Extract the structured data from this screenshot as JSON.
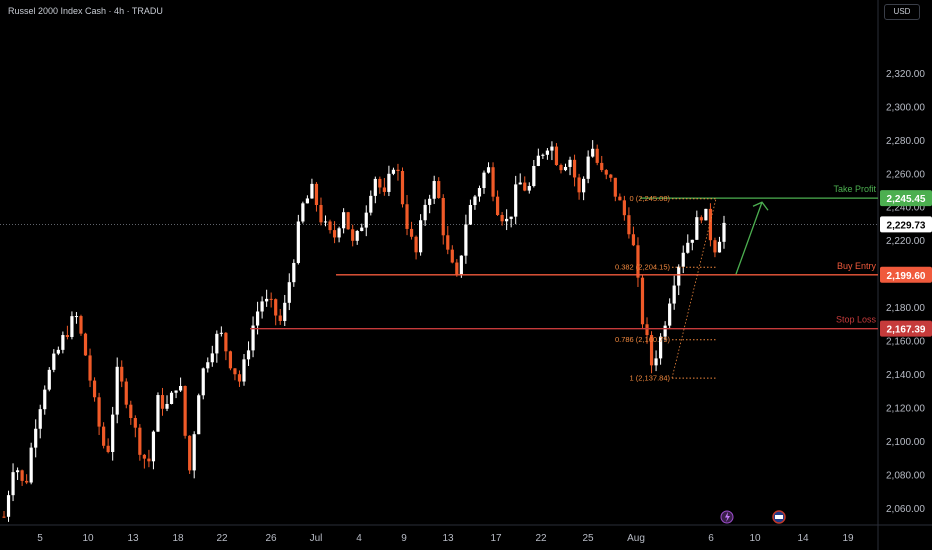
{
  "header": {
    "title": "Russel 2000 Index Cash · 4h · TRADU",
    "currency": "USD"
  },
  "colors": {
    "up": "#ffffff",
    "down": "#f05a28",
    "take_profit": "#4caf50",
    "buy_entry": "#f05a3c",
    "stop_loss": "#c63b3b",
    "fib": "#f0883e",
    "last_price_bg": "#ffffff"
  },
  "chart_data": {
    "type": "candlestick",
    "ylim": [
      2050,
      2340
    ],
    "y_ticks": [
      "2,060.00",
      "2,080.00",
      "2,100.00",
      "2,120.00",
      "2,140.00",
      "2,160.00",
      "2,180.00",
      "2,200.00",
      "2,220.00",
      "2,240.00",
      "2,260.00",
      "2,280.00",
      "2,300.00",
      "2,320.00"
    ],
    "x_ticks": [
      "5",
      "10",
      "13",
      "18",
      "22",
      "26",
      "Jul",
      "4",
      "9",
      "13",
      "17",
      "22",
      "25",
      "Aug",
      "6",
      "10",
      "14",
      "19"
    ],
    "last_price": "2,229.73",
    "levels": [
      {
        "name": "Take Profit",
        "value": 2245.45,
        "label": "2,245.45",
        "color": "#4caf50"
      },
      {
        "name": "Buy Entry",
        "value": 2199.6,
        "label": "2,199.60",
        "color": "#f05a3c"
      },
      {
        "name": "Stop Loss",
        "value": 2167.39,
        "label": "2,167.39",
        "color": "#c63b3b"
      }
    ],
    "fib_labels": [
      {
        "text": "0 (2,245.08)",
        "value": 2245.08
      },
      {
        "text": "0.382 (2,204.15)",
        "value": 2204.15
      },
      {
        "text": "0.786 (2,160.79)",
        "value": 2160.79
      },
      {
        "text": "1 (2,137.84)",
        "value": 2137.84
      }
    ],
    "path_points": [
      2055,
      2090,
      2070,
      2110,
      2135,
      2150,
      2165,
      2175,
      2150,
      2115,
      2090,
      2140,
      2125,
      2100,
      2085,
      2125,
      2120,
      2140,
      2080,
      2135,
      2155,
      2165,
      2148,
      2135,
      2165,
      2185,
      2180,
      2170,
      2205,
      2240,
      2250,
      2230,
      2220,
      2240,
      2215,
      2235,
      2260,
      2245,
      2270,
      2235,
      2210,
      2245,
      2255,
      2215,
      2195,
      2235,
      2250,
      2265,
      2240,
      2230,
      2255,
      2250,
      2270,
      2280,
      2265,
      2270,
      2245,
      2280,
      2260,
      2255,
      2240,
      2225,
      2175,
      2145,
      2165,
      2195,
      2215,
      2225,
      2240,
      2215,
      2230
    ]
  }
}
